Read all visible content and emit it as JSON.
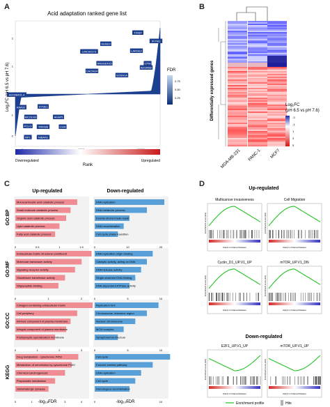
{
  "panels": {
    "a": "A",
    "b": "B",
    "c": "C",
    "d": "D"
  },
  "panelA": {
    "title": "Acid adaptation ranked gene list",
    "ylabel": "Log₂FC (pH 6.5 vs pH 7.6)",
    "xlabel": "Rank",
    "xticks": [
      "0",
      "5000",
      "10000"
    ],
    "yticks": [
      "2",
      "1",
      "0",
      "-1",
      "-2"
    ],
    "fdr_label": "FDR",
    "fdr_ticks": [
      "0.75",
      "0.50",
      "0.25"
    ],
    "bar_left": "Downregulated",
    "bar_right": "Upregulated",
    "genes_up": [
      "TXNIP",
      "IFITM1",
      "SUSD3",
      "LARGE2",
      "LINC00173",
      "CPM",
      "ARHGEF25",
      "ADGRB2",
      "CACNG4",
      "SCNN1A"
    ],
    "genes_down": [
      "AC008491.4",
      "RIMS2",
      "SYNE1",
      "MCOLN3",
      "AKAP5",
      "PCLO",
      "TRIM36",
      "CGN",
      "NPL",
      "NIBAN1"
    ]
  },
  "panelB": {
    "ylabel": "Differentially expressed genes",
    "columns": [
      "MDA-MB-231",
      "PANC-1",
      "MCF7"
    ],
    "legend_title": "Log₂FC",
    "legend_sub": "(pH 6.5 vs pH 7.6)",
    "legend_ticks": [
      "-3",
      "-1",
      "1",
      "3",
      "5"
    ]
  },
  "panelC": {
    "col_up": "Up-regulated",
    "col_down": "Down-regulated",
    "xlabel": "-log₁₀FDR",
    "groups": [
      {
        "name": "GO:BP",
        "up": [
          "Monocarboxylic acid catabolic process",
          "Small molecule catabolic process",
          "Organic acid catabolic process",
          "Lipid catabolic process",
          "Fatty acid catabolic process"
        ],
        "up_vals": [
          1.4,
          1.25,
          1.15,
          1.0,
          0.9
        ],
        "up_ticks": [
          "0",
          "0.5",
          "1",
          "1.5"
        ],
        "down": [
          "DNA replication",
          "DNA metabolic process",
          "Double-strand break repair",
          "DNA recombination",
          "Cell cycle phase transition"
        ],
        "down_vals": [
          24,
          18,
          12,
          10,
          8
        ],
        "down_ticks": [
          "0",
          "10",
          "20"
        ]
      },
      {
        "name": "GO:MF",
        "up": [
          "Extracellular matrix structural constituent",
          "Molecular transducer activity",
          "Signaling receptor activity",
          "Glutathione transferase activity",
          "Oligopeptide binding"
        ],
        "up_vals": [
          2.3,
          2.0,
          1.8,
          1.5,
          1.3
        ],
        "up_ticks": [
          "0",
          "1",
          "2"
        ],
        "down": [
          "DNA replication origin binding",
          "Catalytic activity, acting on DNA",
          "DNA helicase activity",
          "Single-stranded DNA binding",
          "DNA-dependent ATPase activity"
        ],
        "down_vals": [
          10,
          9,
          8,
          7,
          6
        ],
        "down_ticks": [
          "0",
          "5",
          "10"
        ]
      },
      {
        "name": "GO:CC",
        "up": [
          "Collagen-containing extracellular matrix",
          "Cell periphery",
          "Intrinsic component of plasma membrane",
          "Integral component of plasma membrane",
          "Postsynaptic specialization membrane"
        ],
        "up_vals": [
          3.5,
          2.8,
          2.5,
          2.3,
          1.8
        ],
        "up_ticks": [
          "0",
          "1",
          "2",
          "3"
        ],
        "down": [
          "Replication fork",
          "Chromosome, telomeric region",
          "Nuclear chromosome",
          "MCM complex",
          "Synaptonemal structure"
        ],
        "down_vals": [
          11,
          9,
          7,
          5,
          4
        ],
        "down_ticks": [
          "0",
          "5",
          "10"
        ]
      },
      {
        "name": "KEGG",
        "up": [
          "Drug metabolism - cytochrome P450",
          "Metabolism of xenobiotics by cytochrome P450",
          "Chemical carcinogenesis",
          "Propanoate metabolism",
          "Glutamatergic synapse"
        ],
        "up_vals": [
          3.8,
          3.4,
          3.0,
          2.4,
          2.0
        ],
        "up_ticks": [
          "0",
          "1",
          "2",
          "3",
          "4"
        ],
        "down": [
          "Cell cycle",
          "Fanconi anemia pathway",
          "DNA replication",
          "Cell cycle",
          "Homologous recombination"
        ],
        "down_vals": [
          13,
          10,
          8,
          7,
          6
        ],
        "down_ticks": [
          "0",
          "5",
          "10"
        ]
      }
    ]
  },
  "panelD": {
    "up_title": "Up-regulated",
    "down_title": "Down-regulated",
    "plots": [
      {
        "title": "Multicancer invasiveness",
        "dir": "up"
      },
      {
        "title": "Cell Migration",
        "dir": "up"
      },
      {
        "title": "Cyclin_D1_UP.V1_UP",
        "dir": "up"
      },
      {
        "title": "mTOR_UP.V1_DN",
        "dir": "up"
      },
      {
        "title": "E2F1_UP.V1_UP",
        "dir": "down"
      },
      {
        "title": "mTOR_UP.V1_UP",
        "dir": "down"
      }
    ],
    "ylabel": "Enrichment score (ES)",
    "xlabel": "Rank in Ordered Dataset",
    "legend_profile": "Enrichment profile",
    "legend_hits": "Hits"
  }
}
